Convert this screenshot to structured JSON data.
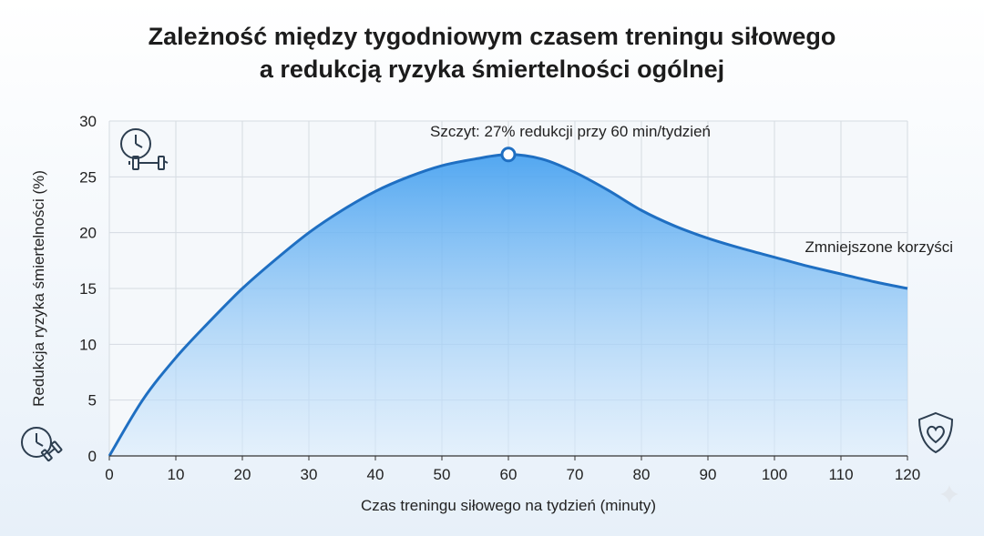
{
  "chart_data": {
    "type": "area",
    "title_line1": "Zależność między tygodniowym czasem treningu siłowego",
    "title_line2": "a redukcją ryzyka śmiertelności ogólnej",
    "xlabel": "Czas treningu siłowego na tydzień (minuty)",
    "ylabel": "Redukcja ryzyka śmiertelności (%)",
    "xlim": [
      0,
      120
    ],
    "ylim": [
      0,
      30
    ],
    "xticks": [
      0,
      10,
      20,
      30,
      40,
      50,
      60,
      70,
      80,
      90,
      100,
      110,
      120
    ],
    "yticks": [
      0,
      5,
      10,
      15,
      20,
      25,
      30
    ],
    "grid": true,
    "series": [
      {
        "x": [
          0,
          5,
          10,
          15,
          20,
          25,
          30,
          35,
          40,
          45,
          50,
          55,
          60,
          65,
          70,
          75,
          80,
          85,
          90,
          95,
          100,
          105,
          110,
          115,
          120
        ],
        "y": [
          0,
          5,
          8.8,
          12,
          15,
          17.6,
          20,
          22,
          23.7,
          25,
          26,
          26.6,
          27,
          26.6,
          25.4,
          23.8,
          22,
          20.6,
          19.5,
          18.6,
          17.8,
          17,
          16.3,
          15.6,
          15
        ]
      }
    ],
    "peak": {
      "x": 60,
      "y": 27
    },
    "annotations": {
      "peak_label": "Szczyt: 27% redukcji przy 60 min/tydzień",
      "tail_label": "Zmniejszone korzyści"
    },
    "colors": {
      "line": "#1f6fc2",
      "fill_top": "#4aa3f0",
      "fill_bottom": "#d6eafc",
      "grid": "#d5dbe2"
    },
    "icons": [
      "clock-dumbbell-icon",
      "clock-dumbbell-icon",
      "shield-heart-icon",
      "sparkle-icon"
    ]
  }
}
